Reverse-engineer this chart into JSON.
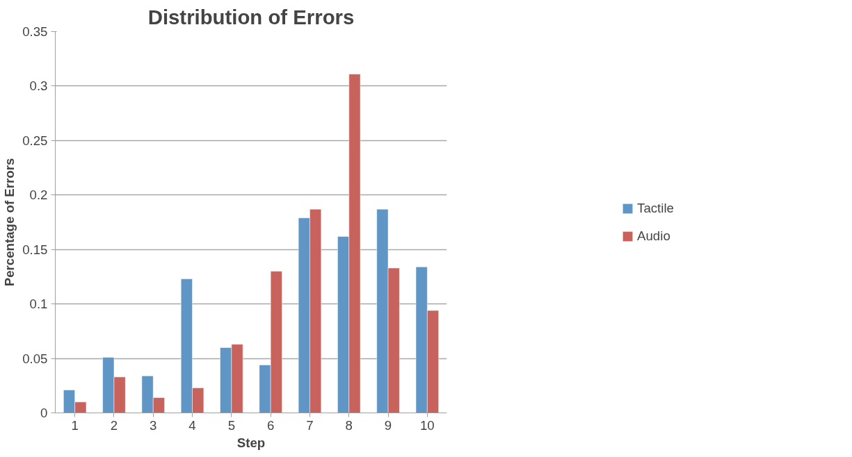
{
  "chart_data": {
    "type": "bar",
    "title": "Distribution of Errors",
    "xlabel": "Step",
    "ylabel": "Percentage of Errors",
    "categories": [
      "1",
      "2",
      "3",
      "4",
      "5",
      "6",
      "7",
      "8",
      "9",
      "10"
    ],
    "series": [
      {
        "name": "Tactile",
        "color": "#5f96c5",
        "values": [
          0.021,
          0.051,
          0.034,
          0.123,
          0.06,
          0.044,
          0.179,
          0.162,
          0.187,
          0.134
        ]
      },
      {
        "name": "Audio",
        "color": "#c8625d",
        "values": [
          0.01,
          0.033,
          0.014,
          0.023,
          0.063,
          0.13,
          0.187,
          0.311,
          0.133,
          0.094
        ]
      }
    ],
    "ylim": [
      0,
      0.35
    ],
    "yticks": [
      0,
      {
        "value": 0.05,
        "label": "0.05"
      },
      {
        "value": 0.1,
        "label": "0.1"
      },
      {
        "value": 0.15,
        "label": "0.15"
      },
      {
        "value": 0.2,
        "label": "0.2"
      },
      {
        "value": 0.25,
        "label": "0.25"
      },
      {
        "value": 0.3,
        "label": "0.3"
      },
      {
        "value": 0.35,
        "label": "0.35"
      }
    ],
    "grid": "y",
    "legend": "right"
  }
}
